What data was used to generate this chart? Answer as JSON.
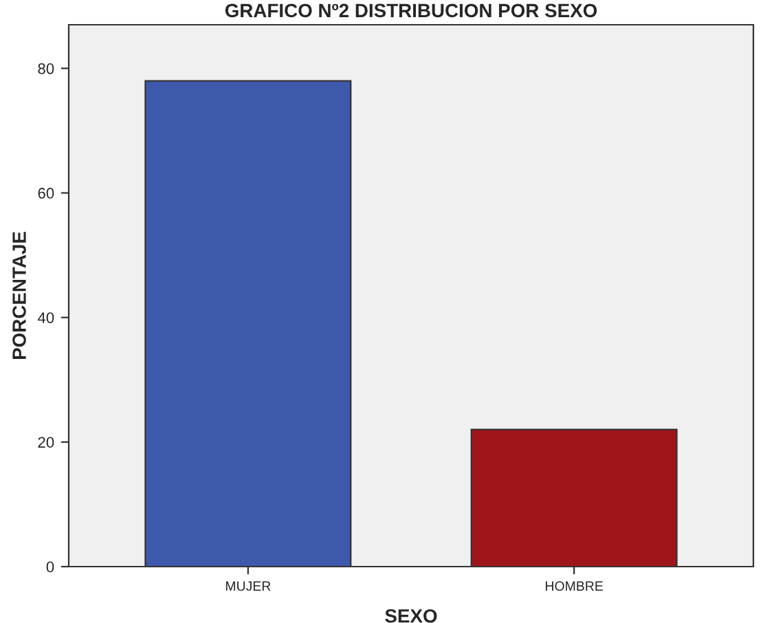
{
  "chart_data": {
    "type": "bar",
    "title": "GRAFICO Nº2 DISTRIBUCION POR SEXO",
    "xlabel": "SEXO",
    "ylabel": "PORCENTAJE",
    "categories": [
      "MUJER",
      "HOMBRE"
    ],
    "values": [
      78,
      22
    ],
    "colors": [
      "#3e58ab",
      "#a0151b"
    ],
    "ylim": [
      0,
      87
    ],
    "yticks": [
      0,
      20,
      40,
      60,
      80
    ],
    "grid": false
  }
}
